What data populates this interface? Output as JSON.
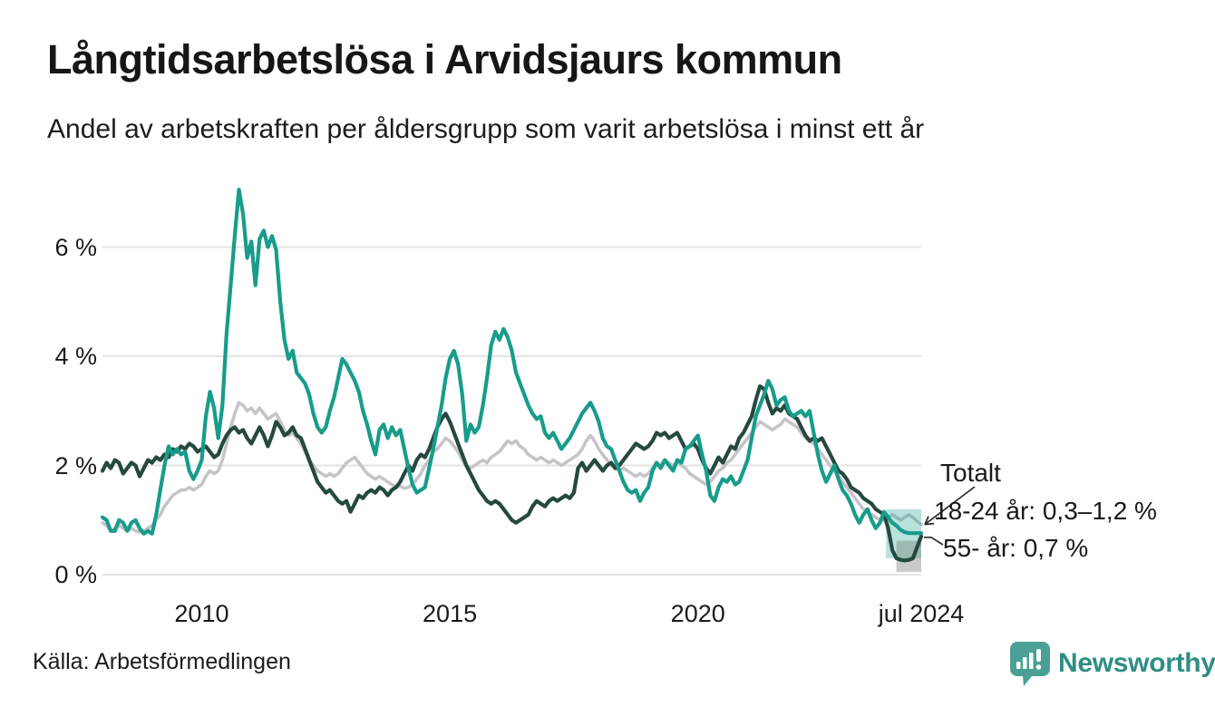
{
  "header": {
    "title": "Långtidsarbetslösa i Arvidsjaurs kommun",
    "subtitle": "Andel av arbetskraften per åldersgrupp som varit arbetslösa i minst ett år"
  },
  "footer": {
    "source": "Källa: Arbetsförmedlingen",
    "brand": "Newsworthy",
    "brand_color": "#2f8e83",
    "logo_icon": "speech-bubble-bar-chart-exclamation"
  },
  "colors": {
    "young": "#189c8b",
    "old": "#26493f",
    "total": "#c6c4c9",
    "grid": "#e5e4e4",
    "text": "#1b1b1b",
    "band_young": "#18a08e",
    "band_old": "#6f7672",
    "connector": "#2b2b2b"
  },
  "chart_data": {
    "type": "line",
    "title": "Långtidsarbetslösa i Arvidsjaurs kommun",
    "subtitle": "Andel av arbetskraften per åldersgrupp som varit arbetslösa i minst ett år",
    "unit": "% av arbetskraften",
    "grid": true,
    "xlim": [
      2008,
      2024.5
    ],
    "ylim": [
      0,
      7.2
    ],
    "x_start": 2008.0,
    "x_step": 0.0833333,
    "x_ticks": [
      {
        "value": 2010,
        "label": "2010"
      },
      {
        "value": 2015,
        "label": "2015"
      },
      {
        "value": 2020,
        "label": "2020"
      },
      {
        "value": 2024.5,
        "label": "jul 2024"
      }
    ],
    "y_ticks": [
      {
        "value": 0,
        "label": "0 %"
      },
      {
        "value": 2,
        "label": "2 %"
      },
      {
        "value": 4,
        "label": "4 %"
      },
      {
        "value": 6,
        "label": "6 %"
      }
    ],
    "series": [
      {
        "name": "Totalt",
        "color": "#c6c4c9",
        "width": 3.6,
        "values": [
          0.95,
          0.9,
          0.8,
          0.85,
          0.9,
          0.85,
          0.8,
          0.85,
          0.8,
          0.78,
          0.8,
          0.85,
          0.9,
          1.0,
          1.1,
          1.25,
          1.35,
          1.45,
          1.5,
          1.55,
          1.55,
          1.6,
          1.55,
          1.6,
          1.65,
          1.8,
          1.9,
          1.85,
          1.9,
          2.1,
          2.4,
          2.7,
          2.95,
          3.15,
          3.1,
          3.0,
          3.05,
          2.95,
          3.05,
          2.95,
          2.85,
          2.9,
          2.95,
          2.8,
          2.65,
          2.55,
          2.6,
          2.5,
          2.4,
          2.25,
          2.1,
          2.0,
          1.9,
          1.85,
          1.8,
          1.85,
          1.8,
          1.85,
          1.95,
          2.05,
          2.1,
          2.15,
          2.05,
          1.95,
          1.85,
          1.8,
          1.75,
          1.8,
          1.75,
          1.7,
          1.65,
          1.6,
          1.62,
          1.58,
          1.6,
          1.65,
          1.75,
          1.85,
          2.0,
          2.1,
          2.25,
          2.3,
          2.4,
          2.5,
          2.45,
          2.35,
          2.25,
          2.1,
          2.0,
          1.95,
          2.0,
          2.05,
          2.1,
          2.05,
          2.15,
          2.2,
          2.25,
          2.35,
          2.45,
          2.4,
          2.45,
          2.35,
          2.3,
          2.2,
          2.15,
          2.1,
          2.15,
          2.1,
          2.05,
          2.1,
          2.05,
          2.0,
          2.05,
          2.1,
          2.15,
          2.2,
          2.3,
          2.45,
          2.55,
          2.45,
          2.3,
          2.2,
          2.1,
          2.0,
          1.95,
          1.9,
          1.95,
          1.9,
          1.85,
          1.8,
          1.85,
          1.8,
          1.85,
          1.95,
          2.05,
          2.0,
          2.1,
          2.05,
          2.0,
          2.05,
          2.0,
          1.95,
          1.85,
          1.8,
          1.75,
          1.7,
          1.65,
          1.7,
          1.8,
          1.9,
          1.95,
          2.05,
          2.1,
          2.2,
          2.3,
          2.4,
          2.5,
          2.6,
          2.7,
          2.8,
          2.75,
          2.7,
          2.65,
          2.7,
          2.75,
          2.85,
          2.8,
          2.75,
          2.7,
          2.6,
          2.5,
          2.45,
          2.4,
          2.3,
          2.2,
          2.1,
          2.0,
          1.9,
          1.8,
          1.7,
          1.6,
          1.5,
          1.4,
          1.3,
          1.2,
          1.15,
          1.1,
          1.05,
          1.0,
          1.0,
          1.05,
          1.1,
          1.05,
          1.0,
          1.05,
          1.1,
          1.05,
          0.98,
          0.92
        ]
      },
      {
        "name": "55- år",
        "color": "#26493f",
        "width": 4.2,
        "values": [
          1.9,
          2.05,
          1.95,
          2.1,
          2.05,
          1.85,
          1.95,
          2.05,
          2.0,
          1.8,
          1.95,
          2.1,
          2.05,
          2.15,
          2.1,
          2.2,
          2.15,
          2.3,
          2.25,
          2.35,
          2.3,
          2.4,
          2.35,
          2.25,
          2.3,
          2.35,
          2.25,
          2.15,
          2.2,
          2.4,
          2.55,
          2.65,
          2.7,
          2.6,
          2.65,
          2.5,
          2.4,
          2.55,
          2.7,
          2.55,
          2.35,
          2.55,
          2.8,
          2.7,
          2.55,
          2.6,
          2.7,
          2.55,
          2.5,
          2.3,
          2.1,
          1.9,
          1.7,
          1.6,
          1.5,
          1.55,
          1.45,
          1.35,
          1.3,
          1.35,
          1.15,
          1.3,
          1.45,
          1.4,
          1.5,
          1.55,
          1.5,
          1.6,
          1.55,
          1.45,
          1.55,
          1.6,
          1.7,
          1.85,
          2.0,
          1.9,
          2.1,
          2.2,
          2.15,
          2.3,
          2.5,
          2.7,
          2.85,
          2.95,
          2.8,
          2.6,
          2.4,
          2.2,
          2.0,
          1.85,
          1.7,
          1.55,
          1.45,
          1.35,
          1.3,
          1.35,
          1.3,
          1.2,
          1.1,
          1.0,
          0.95,
          1.0,
          1.05,
          1.1,
          1.25,
          1.35,
          1.3,
          1.25,
          1.35,
          1.4,
          1.35,
          1.4,
          1.45,
          1.4,
          1.5,
          1.95,
          2.05,
          1.9,
          2.0,
          2.1,
          2.0,
          1.9,
          2.0,
          2.05,
          1.95,
          2.0,
          2.1,
          2.2,
          2.3,
          2.4,
          2.35,
          2.3,
          2.35,
          2.45,
          2.6,
          2.55,
          2.6,
          2.5,
          2.55,
          2.6,
          2.45,
          2.3,
          2.35,
          2.4,
          2.3,
          2.1,
          1.95,
          1.85,
          2.0,
          2.15,
          2.05,
          2.2,
          2.35,
          2.3,
          2.5,
          2.6,
          2.75,
          2.9,
          3.2,
          3.45,
          3.4,
          3.15,
          2.95,
          3.05,
          3.0,
          3.1,
          2.95,
          2.9,
          2.85,
          2.7,
          2.55,
          2.45,
          2.5,
          2.45,
          2.5,
          2.35,
          2.2,
          2.05,
          1.9,
          1.85,
          1.75,
          1.6,
          1.55,
          1.5,
          1.4,
          1.35,
          1.3,
          1.2,
          1.15,
          1.1,
          0.85,
          0.45,
          0.3,
          0.27,
          0.26,
          0.27,
          0.3,
          0.5,
          0.7
        ]
      },
      {
        "name": "18-24 år",
        "color": "#189c8b",
        "width": 4.2,
        "values": [
          1.05,
          1.0,
          0.8,
          0.8,
          1.0,
          0.95,
          0.8,
          0.95,
          1.0,
          0.85,
          0.75,
          0.8,
          0.75,
          1.1,
          1.55,
          2.0,
          2.35,
          2.2,
          2.3,
          2.2,
          2.25,
          1.9,
          1.75,
          1.9,
          2.1,
          2.9,
          3.35,
          3.05,
          2.5,
          3.1,
          4.4,
          5.3,
          6.2,
          7.05,
          6.6,
          5.8,
          6.1,
          5.3,
          6.15,
          6.3,
          6.0,
          6.2,
          5.95,
          5.0,
          4.3,
          3.95,
          4.1,
          3.7,
          3.6,
          3.5,
          3.3,
          2.95,
          2.7,
          2.6,
          2.7,
          3.0,
          3.25,
          3.6,
          3.95,
          3.85,
          3.7,
          3.55,
          3.35,
          3.0,
          2.75,
          2.45,
          2.2,
          2.65,
          2.75,
          2.5,
          2.7,
          2.55,
          2.65,
          2.3,
          1.95,
          1.65,
          1.5,
          1.55,
          1.6,
          1.95,
          2.3,
          2.7,
          3.1,
          3.6,
          3.95,
          4.1,
          3.85,
          3.3,
          2.45,
          2.75,
          2.6,
          2.7,
          3.1,
          3.6,
          4.2,
          4.45,
          4.3,
          4.5,
          4.35,
          4.1,
          3.7,
          3.5,
          3.3,
          3.1,
          2.95,
          2.85,
          2.9,
          2.6,
          2.5,
          2.6,
          2.45,
          2.3,
          2.4,
          2.5,
          2.65,
          2.8,
          2.95,
          3.05,
          3.15,
          3.0,
          2.8,
          2.5,
          2.35,
          2.3,
          2.1,
          1.9,
          1.7,
          1.55,
          1.5,
          1.55,
          1.35,
          1.5,
          1.6,
          1.9,
          2.05,
          1.95,
          2.1,
          2.0,
          1.9,
          2.1,
          2.05,
          2.3,
          2.35,
          2.45,
          2.55,
          2.2,
          1.9,
          1.45,
          1.35,
          1.6,
          1.75,
          1.7,
          1.8,
          1.65,
          1.7,
          1.9,
          2.1,
          2.5,
          2.9,
          3.1,
          3.3,
          3.55,
          3.4,
          3.1,
          3.2,
          3.25,
          3.0,
          2.9,
          2.95,
          3.0,
          2.9,
          3.0,
          2.6,
          2.2,
          1.9,
          1.7,
          1.85,
          2.0,
          1.75,
          1.55,
          1.45,
          1.3,
          1.1,
          0.95,
          1.1,
          1.2,
          1.0,
          0.85,
          0.95,
          1.15,
          1.05,
          0.95,
          0.9,
          0.82,
          0.78,
          0.76,
          0.76,
          0.76,
          0.76
        ]
      }
    ],
    "bands": [
      {
        "series": "18-24 år",
        "x_from": 2023.79,
        "x_to": 2024.5,
        "low": 0.3,
        "high": 1.2,
        "color": "#18a08e",
        "opacity": 0.3
      },
      {
        "series": "55- år",
        "x_from": 2024.0,
        "x_to": 2024.5,
        "low": 0.05,
        "high": 0.62,
        "color": "#6f7672",
        "opacity": 0.38
      }
    ],
    "annotations": [
      {
        "id": "totalt",
        "label": "Totalt",
        "points_to_value": 0.92
      },
      {
        "id": "young",
        "label": "18-24 år: 0,3–1,2 %",
        "points_to_value": 0.76
      },
      {
        "id": "old",
        "label": "55- år: 0,7 %",
        "points_to_value": 0.7
      }
    ],
    "legend_position": "right-end-labels"
  }
}
